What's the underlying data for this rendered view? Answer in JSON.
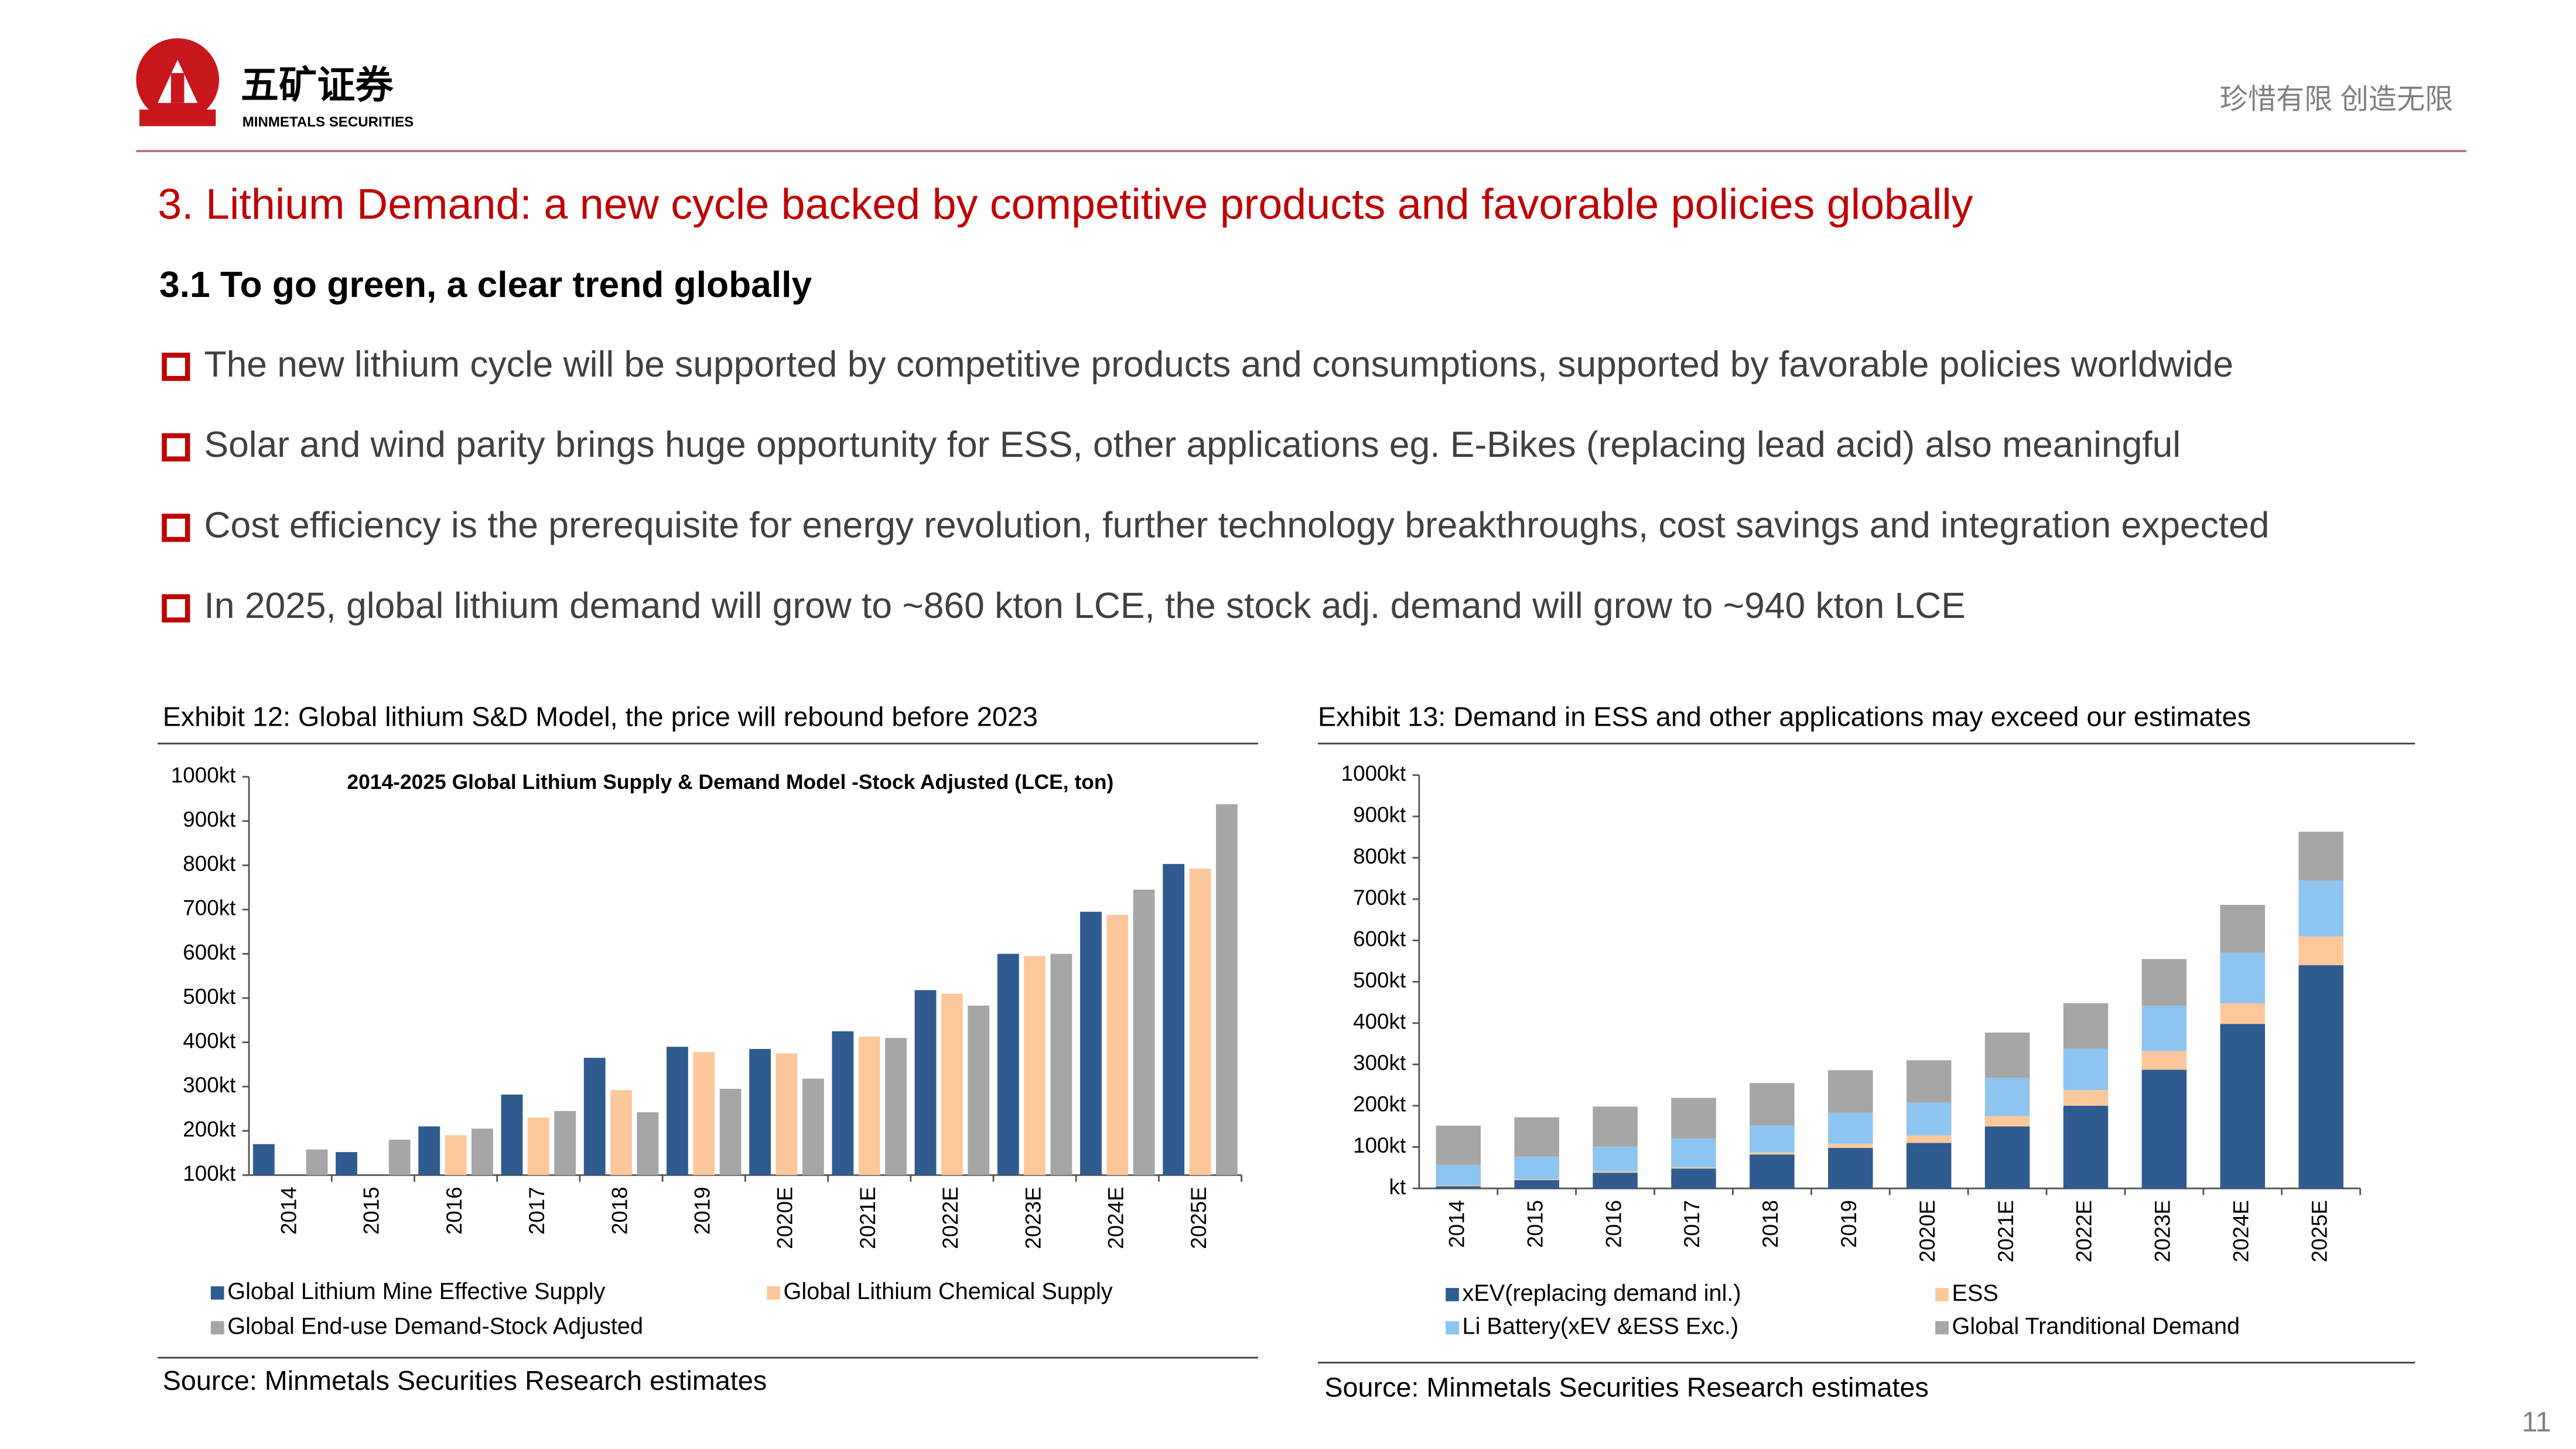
{
  "header": {
    "company": "五矿证券",
    "company_en": "MINMETALS SECURITIES",
    "slogan": "珍惜有限  创造无限"
  },
  "title": "3. Lithium Demand: a new cycle backed by competitive products and favorable policies globally",
  "subtitle": "3.1 To go green, a clear trend globally",
  "bullets": [
    "The new lithium cycle will be supported by competitive products and consumptions, supported by favorable policies worldwide",
    "Solar and wind parity brings huge opportunity for ESS, other applications eg. E-Bikes (replacing lead acid) also meaningful",
    "Cost efficiency is the prerequisite for energy revolution, further technology breakthroughs, cost savings and integration expected",
    "In 2025, global lithium demand will grow to ~860 kton LCE, the stock adj. demand will grow to ~940 kton LCE"
  ],
  "exhibits": [
    {
      "caption": "Exhibit 12: Global lithium S&D Model, the price will rebound before 2023",
      "source": "Source: Minmetals Securities Research estimates"
    },
    {
      "caption": "Exhibit 13: Demand in ESS and other applications may exceed our estimates",
      "source": "Source: Minmetals Securities Research estimates"
    }
  ],
  "page_number": "11",
  "chart_data": [
    {
      "type": "bar",
      "title": "2014-2025 Global Lithium Supply & Demand Model -Stock Adjusted (LCE, ton)",
      "categories": [
        "2014",
        "2015",
        "2016",
        "2017",
        "2018",
        "2019",
        "2020E",
        "2021E",
        "2022E",
        "2023E",
        "2024E",
        "2025E"
      ],
      "series": [
        {
          "name": "Global Lithium Mine Effective Supply",
          "color": "#2f5b8f",
          "values": [
            170,
            152,
            210,
            282,
            365,
            390,
            385,
            425,
            518,
            600,
            695,
            803
          ]
        },
        {
          "name": "Global Lithium Chemical Supply",
          "color": "#fcc89b",
          "values": [
            null,
            null,
            190,
            230,
            292,
            378,
            375,
            413,
            510,
            595,
            688,
            793
          ]
        },
        {
          "name": "Global End-use Demand-Stock Adjusted",
          "color": "#a6a6a6",
          "values": [
            158,
            180,
            205,
            245,
            242,
            295,
            318,
            410,
            483,
            600,
            745,
            938
          ]
        }
      ],
      "ylim": [
        100,
        1000
      ],
      "yticks": [
        {
          "value": 100,
          "label": "100kt"
        },
        {
          "value": 200,
          "label": "200kt"
        },
        {
          "value": 300,
          "label": "300kt"
        },
        {
          "value": 400,
          "label": "400kt"
        },
        {
          "value": 500,
          "label": "500kt"
        },
        {
          "value": 600,
          "label": "600kt"
        },
        {
          "value": 700,
          "label": "700kt"
        },
        {
          "value": 800,
          "label": "800kt"
        },
        {
          "value": 900,
          "label": "900kt"
        },
        {
          "value": 1000,
          "label": "1000kt"
        }
      ],
      "grid": false
    },
    {
      "type": "stacked_bar",
      "categories": [
        "2014",
        "2015",
        "2016",
        "2017",
        "2018",
        "2019",
        "2020E",
        "2021E",
        "2022E",
        "2023E",
        "2024E",
        "2025E"
      ],
      "series": [
        {
          "name": "xEV(replacing demand inl.)",
          "color": "#2f5b8f",
          "values": [
            5,
            20,
            38,
            48,
            82,
            98,
            110,
            150,
            200,
            287,
            398,
            540
          ]
        },
        {
          "name": "ESS",
          "color": "#fcc89b",
          "values": [
            2,
            2,
            3,
            3,
            5,
            10,
            18,
            25,
            38,
            45,
            50,
            70
          ]
        },
        {
          "name": "Li Battery(xEV &ESS Exc.)",
          "color": "#8ec5f0",
          "values": [
            50,
            55,
            60,
            70,
            65,
            75,
            80,
            92,
            100,
            110,
            122,
            135
          ]
        },
        {
          "name": "Global Tranditional Demand",
          "color": "#a6a6a6",
          "values": [
            95,
            95,
            97,
            98,
            103,
            103,
            102,
            110,
            110,
            113,
            116,
            118
          ]
        }
      ],
      "ylim": [
        0,
        1000
      ],
      "yticks": [
        {
          "value": 0,
          "label": "kt"
        },
        {
          "value": 100,
          "label": "100kt"
        },
        {
          "value": 200,
          "label": "200kt"
        },
        {
          "value": 300,
          "label": "300kt"
        },
        {
          "value": 400,
          "label": "400kt"
        },
        {
          "value": 500,
          "label": "500kt"
        },
        {
          "value": 600,
          "label": "600kt"
        },
        {
          "value": 700,
          "label": "700kt"
        },
        {
          "value": 800,
          "label": "800kt"
        },
        {
          "value": 900,
          "label": "900kt"
        },
        {
          "value": 1000,
          "label": "1000kt"
        }
      ],
      "grid": false
    }
  ]
}
